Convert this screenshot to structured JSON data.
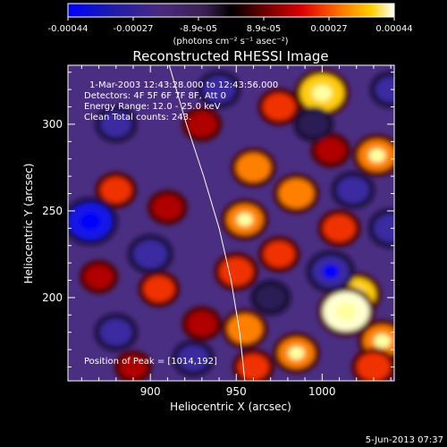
{
  "chart_data": {
    "type": "heatmap",
    "title": "Reconstructed RHESSI Image",
    "xlabel": "Heliocentric X (arcsec)",
    "ylabel": "Heliocentric Y (arcsec)",
    "xlim": [
      852,
      1042
    ],
    "ylim": [
      152,
      334
    ],
    "x_ticks": [
      900,
      950,
      1000
    ],
    "y_ticks": [
      200,
      250,
      300
    ],
    "colorbar": {
      "label": "(photons cm⁻² s⁻¹ asec⁻²)",
      "range": [
        -0.00044,
        0.00044
      ],
      "tick_labels": [
        "-0.00044",
        "-0.00027",
        "-8.9e-05",
        "8.9e-05",
        "0.00027",
        "0.00044"
      ]
    },
    "annotations": [
      "1-Mar-2003 12:43:28.000 to 12:43:56.000",
      "Detectors: 4F 5F 6F 7F 8F, Att 0",
      "Energy Range: 12.0 - 25.0 keV",
      "Clean    Total counts: 243.",
      "Position of Peak = [1014,192]"
    ],
    "limb_curve": {
      "x": [
        911,
        921,
        931,
        940,
        947,
        952,
        955
      ],
      "y": [
        334,
        300,
        270,
        240,
        210,
        180,
        152
      ]
    },
    "sources": [
      {
        "x": 1000,
        "y": 318,
        "value": 0.0004
      },
      {
        "x": 975,
        "y": 310,
        "value": 0.00022
      },
      {
        "x": 1032,
        "y": 282,
        "value": 0.0003
      },
      {
        "x": 930,
        "y": 300,
        "value": 0.00018
      },
      {
        "x": 960,
        "y": 275,
        "value": 0.00025
      },
      {
        "x": 985,
        "y": 260,
        "value": 0.00026
      },
      {
        "x": 955,
        "y": 245,
        "value": 0.00028
      },
      {
        "x": 910,
        "y": 252,
        "value": 0.00018
      },
      {
        "x": 880,
        "y": 262,
        "value": 0.0002
      },
      {
        "x": 1010,
        "y": 240,
        "value": 0.00022
      },
      {
        "x": 950,
        "y": 215,
        "value": 0.00024
      },
      {
        "x": 975,
        "y": 225,
        "value": 0.0002
      },
      {
        "x": 1020,
        "y": 202,
        "value": 0.00032
      },
      {
        "x": 1014,
        "y": 192,
        "value": 0.00044
      },
      {
        "x": 955,
        "y": 182,
        "value": 0.00026
      },
      {
        "x": 985,
        "y": 168,
        "value": 0.00028
      },
      {
        "x": 1035,
        "y": 175,
        "value": 0.0003
      },
      {
        "x": 1030,
        "y": 160,
        "value": 0.00024
      },
      {
        "x": 905,
        "y": 205,
        "value": 0.0002
      },
      {
        "x": 870,
        "y": 212,
        "value": 0.00016
      },
      {
        "x": 930,
        "y": 185,
        "value": 0.00018
      },
      {
        "x": 890,
        "y": 160,
        "value": 0.00014
      },
      {
        "x": 960,
        "y": 160,
        "value": 0.0002
      },
      {
        "x": 1005,
        "y": 285,
        "value": 0.00018
      },
      {
        "x": 880,
        "y": 300,
        "value": -0.0002
      },
      {
        "x": 865,
        "y": 244,
        "value": -0.0004
      },
      {
        "x": 900,
        "y": 225,
        "value": -0.00025
      },
      {
        "x": 1005,
        "y": 215,
        "value": -0.0003
      },
      {
        "x": 1040,
        "y": 240,
        "value": -0.00025
      },
      {
        "x": 940,
        "y": 320,
        "value": -0.00022
      },
      {
        "x": 1018,
        "y": 262,
        "value": -0.00022
      },
      {
        "x": 880,
        "y": 180,
        "value": -0.00022
      },
      {
        "x": 925,
        "y": 165,
        "value": -0.0002
      },
      {
        "x": 995,
        "y": 300,
        "value": -0.00018
      },
      {
        "x": 1040,
        "y": 320,
        "value": -0.0002
      },
      {
        "x": 970,
        "y": 200,
        "value": -0.00018
      }
    ]
  },
  "footer": {
    "date": "5-Jun-2013 07:37"
  }
}
